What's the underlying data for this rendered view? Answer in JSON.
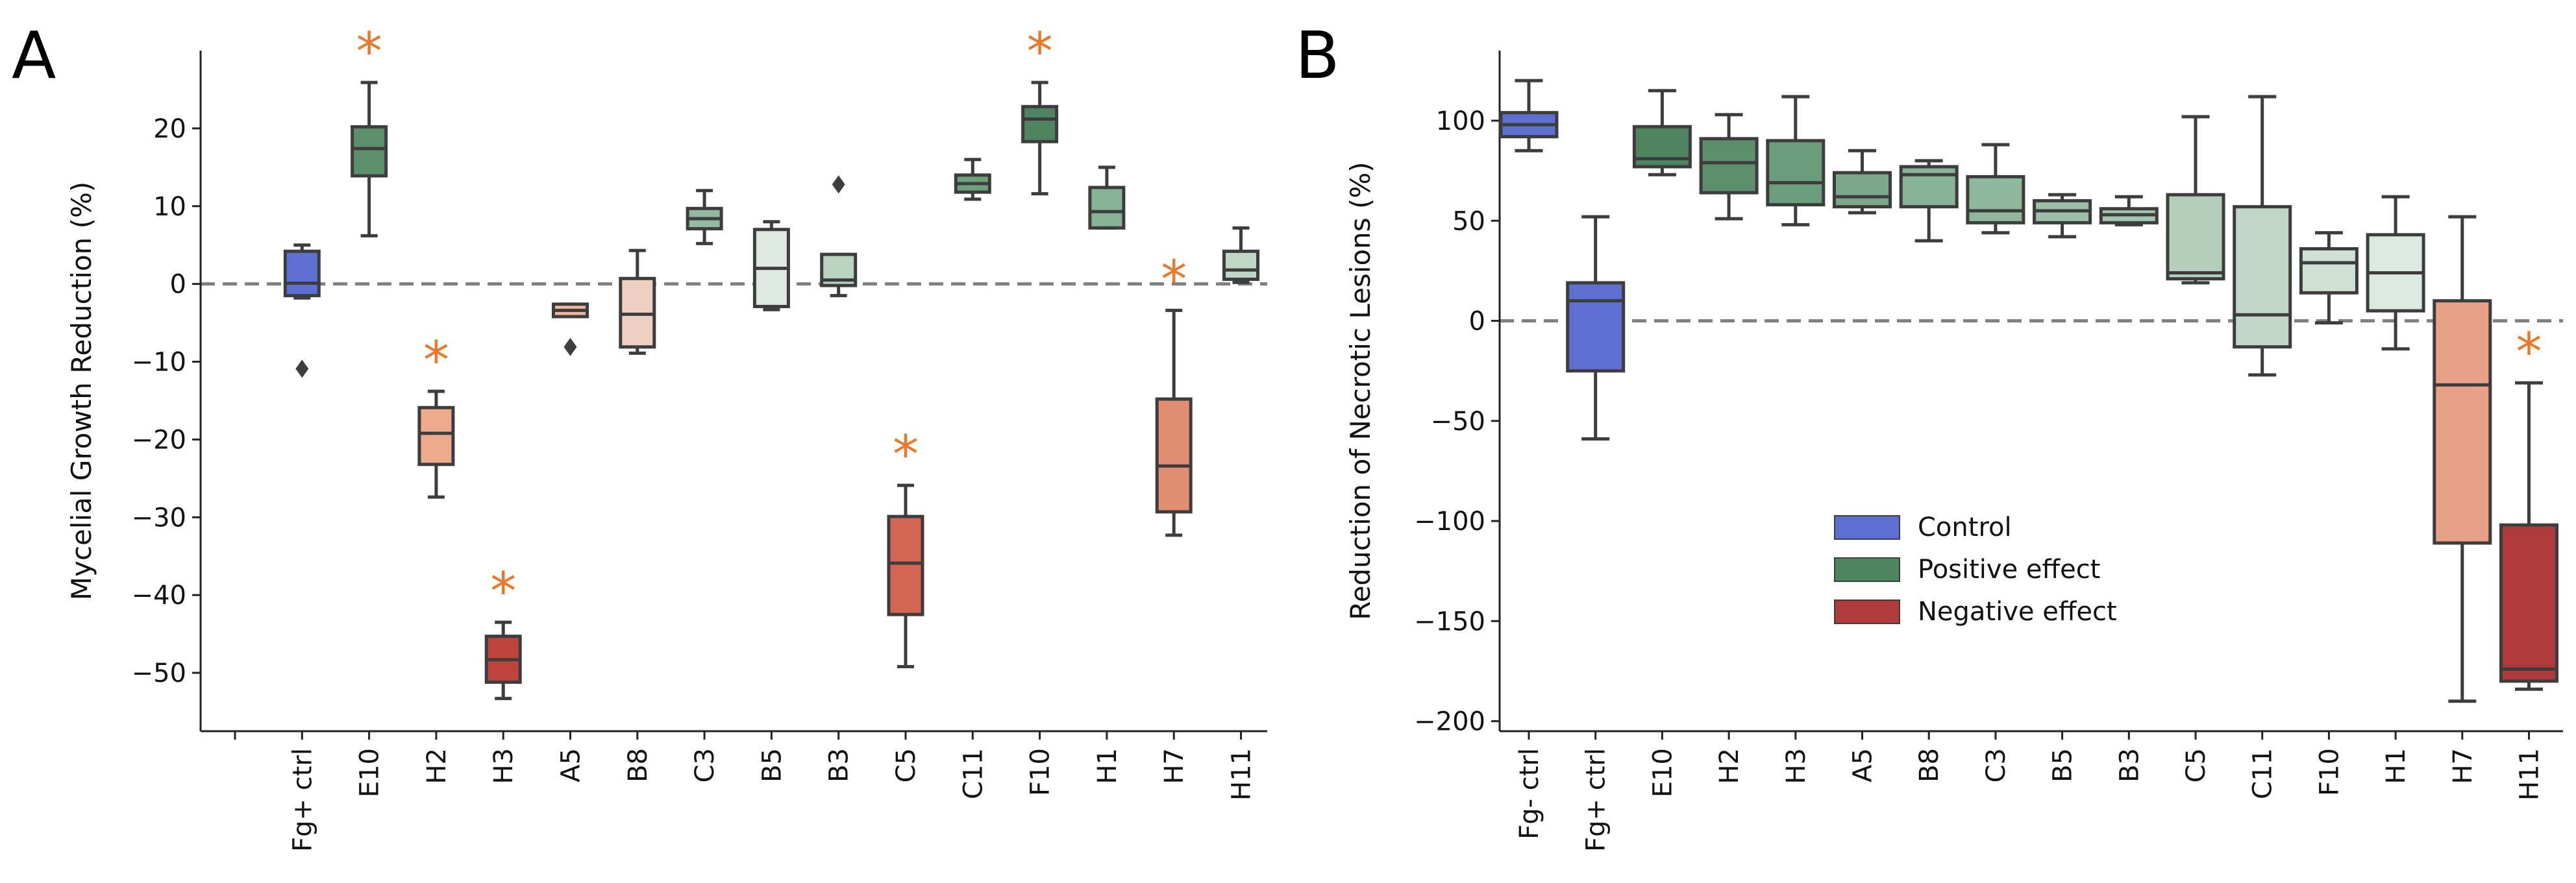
{
  "chart_data": [
    {
      "panel": "A",
      "type": "box",
      "ylabel": "Mycelial Growth Reduction (%)",
      "xlabel": "",
      "ylim": [
        -57.5,
        30
      ],
      "yticks": [
        -50,
        -40,
        -30,
        -20,
        -10,
        0,
        10,
        20
      ],
      "reference_line": 0,
      "categories": [
        "",
        "Fg+ ctrl",
        "E10",
        "H2",
        "H3",
        "A5",
        "B8",
        "C3",
        "B5",
        "B3",
        "C5",
        "C11",
        "F10",
        "H1",
        "H7",
        "H11"
      ],
      "boxes": [
        {
          "label": "Fg+ ctrl",
          "whisker_low": -1.8,
          "q1": -1.5,
          "median": 0.1,
          "q3": 4.2,
          "whisker_high": 5.0,
          "outliers": [
            -10.9
          ],
          "color": "#5d6fd0",
          "significant": false
        },
        {
          "label": "E10",
          "whisker_low": 6.2,
          "q1": 13.9,
          "median": 17.4,
          "q3": 20.2,
          "whisker_high": 25.9,
          "outliers": [],
          "color": "#5b8f6b",
          "significant": true
        },
        {
          "label": "H2",
          "whisker_low": -27.4,
          "q1": -23.2,
          "median": -19.2,
          "q3": -15.9,
          "whisker_high": -13.8,
          "outliers": [],
          "color": "#eeaa8c",
          "significant": true
        },
        {
          "label": "H3",
          "whisker_low": -53.3,
          "q1": -51.2,
          "median": -48.3,
          "q3": -45.3,
          "whisker_high": -43.5,
          "outliers": [],
          "color": "#c0443e",
          "significant": true
        },
        {
          "label": "A5",
          "whisker_low": -4.2,
          "q1": -4.2,
          "median": -3.4,
          "q3": -2.6,
          "whisker_high": -2.6,
          "outliers": [
            -8.1
          ],
          "color": "#f1b8a0",
          "significant": false
        },
        {
          "label": "B8",
          "whisker_low": -8.9,
          "q1": -8.1,
          "median": -3.9,
          "q3": 0.7,
          "whisker_high": 4.3,
          "outliers": [],
          "color": "#efcfc1",
          "significant": false
        },
        {
          "label": "C3",
          "whisker_low": 5.2,
          "q1": 7.1,
          "median": 8.4,
          "q3": 9.7,
          "whisker_high": 12.0,
          "outliers": [],
          "color": "#95b9a0",
          "significant": false
        },
        {
          "label": "B5",
          "whisker_low": -3.3,
          "q1": -2.9,
          "median": 2.0,
          "q3": 7.0,
          "whisker_high": 8.0,
          "outliers": [],
          "color": "#dde9e0",
          "significant": false
        },
        {
          "label": "B3",
          "whisker_low": -1.5,
          "q1": -0.2,
          "median": 0.5,
          "q3": 3.8,
          "whisker_high": 3.8,
          "outliers": [
            12.8
          ],
          "color": "#b8d3c0",
          "significant": false
        },
        {
          "label": "C5",
          "whisker_low": -49.2,
          "q1": -42.5,
          "median": -35.9,
          "q3": -29.9,
          "whisker_high": -25.9,
          "outliers": [],
          "color": "#d46454",
          "significant": true
        },
        {
          "label": "C11",
          "whisker_low": 10.9,
          "q1": 11.8,
          "median": 12.9,
          "q3": 14.0,
          "whisker_high": 16.0,
          "outliers": [],
          "color": "#6fa07f",
          "significant": false
        },
        {
          "label": "F10",
          "whisker_low": 11.6,
          "q1": 18.3,
          "median": 21.2,
          "q3": 22.8,
          "whisker_high": 25.9,
          "outliers": [],
          "color": "#4e8560",
          "significant": true
        },
        {
          "label": "H1",
          "whisker_low": 7.2,
          "q1": 7.2,
          "median": 9.3,
          "q3": 12.4,
          "whisker_high": 15.0,
          "outliers": [],
          "color": "#87b295",
          "significant": false
        },
        {
          "label": "H7",
          "whisker_low": -32.3,
          "q1": -29.3,
          "median": -23.4,
          "q3": -14.8,
          "whisker_high": -3.4,
          "outliers": [],
          "color": "#e08d74",
          "significant": true
        },
        {
          "label": "H11",
          "whisker_low": 0.2,
          "q1": 0.6,
          "median": 1.8,
          "q3": 4.2,
          "whisker_high": 7.2,
          "outliers": [],
          "color": "#bfd8c6",
          "significant": false
        }
      ],
      "annotations": [
        "*"
      ]
    },
    {
      "panel": "B",
      "type": "box",
      "ylabel": "Reduction of Necrotic Lesions (%)",
      "xlabel": "",
      "ylim": [
        -205,
        135
      ],
      "yticks": [
        -200,
        -150,
        -100,
        -50,
        0,
        50,
        100
      ],
      "reference_line": 0,
      "categories": [
        "Fg- ctrl",
        "Fg+ ctrl",
        "E10",
        "H2",
        "H3",
        "A5",
        "B8",
        "C3",
        "B5",
        "B3",
        "C5",
        "C11",
        "F10",
        "H1",
        "H7",
        "H11"
      ],
      "boxes": [
        {
          "label": "Fg- ctrl",
          "whisker_low": 85,
          "q1": 92,
          "median": 98,
          "q3": 104,
          "whisker_high": 120,
          "outliers": [],
          "color": "#5d6fd0",
          "significant": false
        },
        {
          "label": "Fg+ ctrl",
          "whisker_low": -59,
          "q1": -25,
          "median": 10,
          "q3": 19,
          "whisker_high": 52,
          "outliers": [],
          "color": "#5d6fd0",
          "significant": false
        },
        {
          "label": "E10",
          "whisker_low": 73,
          "q1": 77,
          "median": 81,
          "q3": 97,
          "whisker_high": 115,
          "outliers": [],
          "color": "#4e8560",
          "significant": false
        },
        {
          "label": "H2",
          "whisker_low": 51,
          "q1": 64,
          "median": 79,
          "q3": 91,
          "whisker_high": 103,
          "outliers": [],
          "color": "#5b8f6b",
          "significant": false
        },
        {
          "label": "H3",
          "whisker_low": 48,
          "q1": 58,
          "median": 69,
          "q3": 90,
          "whisker_high": 112,
          "outliers": [],
          "color": "#6b9c7b",
          "significant": false
        },
        {
          "label": "A5",
          "whisker_low": 54,
          "q1": 57,
          "median": 62,
          "q3": 74,
          "whisker_high": 85,
          "outliers": [],
          "color": "#7aa888",
          "significant": false
        },
        {
          "label": "B8",
          "whisker_low": 40,
          "q1": 57,
          "median": 73,
          "q3": 77,
          "whisker_high": 80,
          "outliers": [],
          "color": "#87b295",
          "significant": false
        },
        {
          "label": "C3",
          "whisker_low": 44,
          "q1": 49,
          "median": 55,
          "q3": 72,
          "whisker_high": 88,
          "outliers": [],
          "color": "#8fb79c",
          "significant": false
        },
        {
          "label": "B5",
          "whisker_low": 42,
          "q1": 49,
          "median": 55,
          "q3": 60,
          "whisker_high": 63,
          "outliers": [],
          "color": "#9bbfa6",
          "significant": false
        },
        {
          "label": "B3",
          "whisker_low": 48,
          "q1": 49,
          "median": 53,
          "q3": 56,
          "whisker_high": 62,
          "outliers": [],
          "color": "#a5c6af",
          "significant": false
        },
        {
          "label": "C5",
          "whisker_low": 19,
          "q1": 21,
          "median": 24,
          "q3": 63,
          "whisker_high": 102,
          "outliers": [],
          "color": "#b3cfbc",
          "significant": false
        },
        {
          "label": "C11",
          "whisker_low": -27,
          "q1": -13,
          "median": 3,
          "q3": 57,
          "whisker_high": 112,
          "outliers": [],
          "color": "#c0d6c6",
          "significant": false
        },
        {
          "label": "F10",
          "whisker_low": -1,
          "q1": 14,
          "median": 29,
          "q3": 36,
          "whisker_high": 44,
          "outliers": [],
          "color": "#cfe0d4",
          "significant": false
        },
        {
          "label": "H1",
          "whisker_low": -14,
          "q1": 5,
          "median": 24,
          "q3": 43,
          "whisker_high": 62,
          "outliers": [],
          "color": "#dce9e0",
          "significant": false
        },
        {
          "label": "H7",
          "whisker_low": -190,
          "q1": -111,
          "median": -32,
          "q3": 10,
          "whisker_high": 52,
          "outliers": [],
          "color": "#e8a088",
          "significant": false
        },
        {
          "label": "H11",
          "whisker_low": -184,
          "q1": -180,
          "median": -174,
          "q3": -102,
          "whisker_high": -31,
          "outliers": [],
          "color": "#b0393c",
          "significant": true
        }
      ],
      "legend": {
        "placement": "center",
        "entries": [
          {
            "label": "Control",
            "color": "#5d6fd0"
          },
          {
            "label": "Positive effect",
            "color": "#4e8560"
          },
          {
            "label": "Negative effect",
            "color": "#b0393c"
          }
        ]
      },
      "annotations": [
        "*"
      ]
    }
  ],
  "panel_labels": [
    "A",
    "B"
  ],
  "style": {
    "significance_color": "#e8782a",
    "box_edge_color": "#3d3d3d",
    "reference_line_color": "#808080"
  }
}
